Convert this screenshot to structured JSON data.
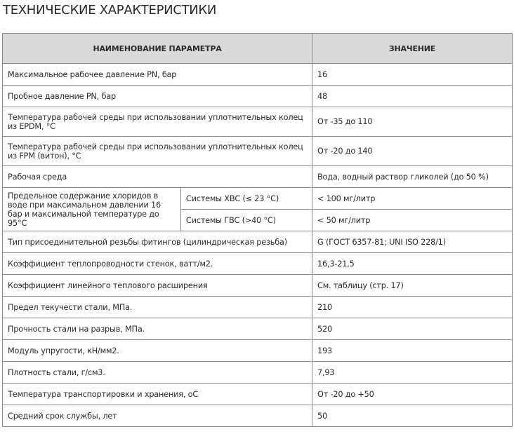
{
  "title": "ТЕХНИЧЕСКИЕ ХАРАКТЕРИСТИКИ",
  "headers": [
    "НАИМЕНОВАНИЕ ПАРАМЕТРА",
    "ЗНАЧЕНИЕ"
  ],
  "rows_top": [
    {
      "param": "Максимальное рабочее давление PN, бар",
      "value": "16"
    },
    {
      "param": "Пробное давление PN, бар",
      "value": "48"
    },
    {
      "param": "Температура рабочей среды при использовании уплотнительных колец из EPDM, °С",
      "value": "От -35 до 110"
    },
    {
      "param": "Температура рабочей среды при использовании уплотнительных колец из FPM (витон), °С",
      "value": "От -20 до 140"
    },
    {
      "param": "Рабочая среда",
      "value": "Вода, водный раствор гликолей (до 50 %)"
    }
  ],
  "chlorides": {
    "param": "Предельное содержание хлоридов в воде при максимальном давлении 16 бар и максимальной температуре до 95°С",
    "sub": [
      {
        "label": "Системы ХВС (≤ 23 °С)",
        "value": "< 100 мг/литр"
      },
      {
        "label": "Системы ГВС (>40 °С)",
        "value": "< 50 мг/литр"
      }
    ]
  },
  "rows_bottom": [
    {
      "param": "Тип присоединительной резьбы фитингов (цилиндрическая резьба)",
      "value": "G (ГОСТ 6357-81; UNI ISO 228/1)"
    },
    {
      "param": "Коэффициент теплопроводности стенок, ватт/м2.",
      "value": "16,3-21,5"
    },
    {
      "param": "Коэффициент линейного теплового расширения",
      "value": "См. таблицу (стр. 17)"
    },
    {
      "param": "Предел текучести стали, МПа.",
      "value": "210"
    },
    {
      "param": "Прочность стали на разрыв,  МПа.",
      "value": "520"
    },
    {
      "param": "Модуль упругости, кН/мм2.",
      "value": "193"
    },
    {
      "param": "Плотность стали, г/см3.",
      "value": "7,93"
    },
    {
      "param": "Температура транспортировки и хранения, оС",
      "value": "От -20 до +50"
    },
    {
      "param": "Средний срок службы, лет",
      "value": "50"
    }
  ]
}
